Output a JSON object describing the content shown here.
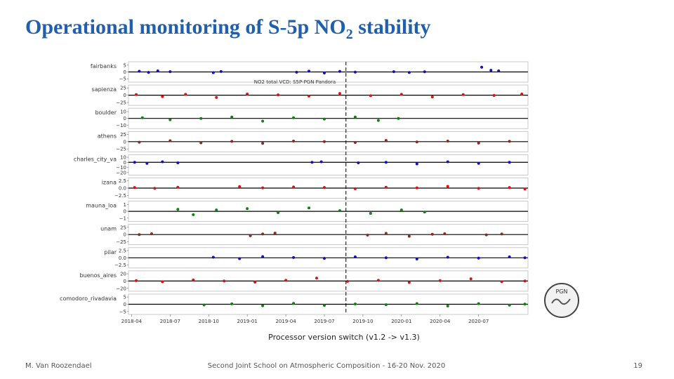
{
  "slide": {
    "title": {
      "main": "Operational monitoring of S-5p NO",
      "sub": "2",
      "rest": " stability"
    },
    "logo": "PGN",
    "footer": {
      "author": "M. Van Roozendael",
      "event": "Second Joint School on Atmospheric Composition - 16-20 Nov. 2020",
      "page": "19"
    }
  },
  "chart_data": {
    "type": "scatter",
    "title": "NO2 total VCD: S5P-PGN Pandora",
    "caption": "Processor version switch (v1.2 -> v1.3)",
    "switch_x": 2019.64,
    "xlim": [
      2018.23,
      2020.82
    ],
    "xticks": [
      {
        "value": 2018.25,
        "label": "2018-04"
      },
      {
        "value": 2018.5,
        "label": "2018-07"
      },
      {
        "value": 2018.75,
        "label": "2018-10"
      },
      {
        "value": 2019.0,
        "label": "2019-01"
      },
      {
        "value": 2019.25,
        "label": "2019-04"
      },
      {
        "value": 2019.5,
        "label": "2019-07"
      },
      {
        "value": 2019.75,
        "label": "2019-10"
      },
      {
        "value": 2020.0,
        "label": "2020-01"
      },
      {
        "value": 2020.25,
        "label": "2020-04"
      },
      {
        "value": 2020.5,
        "label": "2020-07"
      }
    ],
    "panels": [
      {
        "name": "fairbanks",
        "color": "#1010c8",
        "ylim": [
          -7.5,
          7.5
        ],
        "yticks": [
          5,
          0,
          {
            "value": -5,
            "label": "−5"
          }
        ],
        "x": [
          2018.3,
          2018.36,
          2018.42,
          2018.5,
          2018.78,
          2018.83,
          2019.32,
          2019.4,
          2019.5,
          2019.6,
          2019.7,
          2019.95,
          2020.05,
          2020.15,
          2020.52,
          2020.58,
          2020.63
        ],
        "values": [
          0.5,
          -0.3,
          0.8,
          0.2,
          -0.5,
          0.3,
          -0.2,
          0.6,
          -0.8,
          0.4,
          -0.1,
          0.2,
          -0.4,
          0.1,
          3.5,
          1.2,
          0.8
        ]
      },
      {
        "name": "sapienza",
        "color": "#e01010",
        "ylim": [
          -35,
          35
        ],
        "yticks": [
          25,
          0,
          {
            "value": -25,
            "label": "−25"
          }
        ],
        "x": [
          2018.28,
          2018.45,
          2018.6,
          2018.8,
          2019.0,
          2019.2,
          2019.4,
          2019.6,
          2019.8,
          2020.0,
          2020.2,
          2020.4,
          2020.6,
          2020.78
        ],
        "values": [
          2,
          -5,
          3,
          -8,
          4,
          1,
          -3,
          6,
          -2,
          3,
          -6,
          2,
          -1,
          4
        ]
      },
      {
        "name": "boulder",
        "color": "#108010",
        "ylim": [
          -15,
          15
        ],
        "yticks": [
          10,
          0,
          {
            "value": -10,
            "label": "−10"
          }
        ],
        "x": [
          2018.32,
          2018.5,
          2018.7,
          2018.9,
          2019.1,
          2019.3,
          2019.5,
          2019.7,
          2019.85,
          2019.98
        ],
        "values": [
          1,
          -2,
          0,
          2,
          -4,
          1,
          -1,
          2,
          -3,
          0
        ]
      },
      {
        "name": "athens",
        "color": "#8b2a1a",
        "ylim": [
          -35,
          35
        ],
        "yticks": [
          25,
          0,
          {
            "value": -25,
            "label": "−25"
          }
        ],
        "x": [
          2018.3,
          2018.5,
          2018.7,
          2018.9,
          2019.1,
          2019.3,
          2019.5,
          2019.7,
          2019.9,
          2020.1,
          2020.3,
          2020.5,
          2020.7
        ],
        "values": [
          -2,
          3,
          -4,
          1,
          -6,
          2,
          0,
          -3,
          4,
          -1,
          2,
          -5,
          1
        ]
      },
      {
        "name": "charles_city_va",
        "color": "#1010c8",
        "ylim": [
          -25,
          15
        ],
        "yticks": [
          10,
          0,
          {
            "value": -10,
            "label": "−10"
          },
          {
            "value": -20,
            "label": "−20"
          }
        ],
        "x": [
          2018.27,
          2018.35,
          2018.45,
          2018.55,
          2019.42,
          2019.48,
          2019.72,
          2019.9,
          2020.1,
          2020.3,
          2020.5,
          2020.7
        ],
        "values": [
          0,
          -2,
          1,
          -1,
          0,
          1,
          -1,
          0,
          -3,
          1,
          -2,
          0
        ]
      },
      {
        "name": "izana",
        "color": "#e01010",
        "ylim": [
          -3.5,
          3.5
        ],
        "yticks": [
          2.5,
          {
            "value": 0,
            "label": "0.0"
          },
          {
            "value": -2.5,
            "label": "−2.5"
          }
        ],
        "x": [
          2018.27,
          2018.4,
          2018.55,
          2018.95,
          2019.1,
          2019.3,
          2019.5,
          2019.7,
          2019.9,
          2020.1,
          2020.3,
          2020.5,
          2020.7,
          2020.8
        ],
        "values": [
          0.2,
          -0.1,
          0.3,
          0.5,
          0.1,
          0.4,
          0.2,
          -0.2,
          0.3,
          0.1,
          0.6,
          -0.1,
          0.2,
          -0.3
        ]
      },
      {
        "name": "mauna_loa",
        "color": "#108010",
        "ylim": [
          -1.5,
          1.5
        ],
        "yticks": [
          1,
          0,
          {
            "value": -1,
            "label": "−1"
          }
        ],
        "x": [
          2018.55,
          2018.65,
          2018.8,
          2019.0,
          2019.2,
          2019.4,
          2019.6,
          2019.8,
          2020.0,
          2020.15
        ],
        "values": [
          0.3,
          -0.5,
          0.2,
          0.4,
          -0.2,
          0.5,
          0.1,
          -0.3,
          0.2,
          -0.1
        ]
      },
      {
        "name": "unam",
        "color": "#8b2a1a",
        "ylim": [
          -35,
          35
        ],
        "yticks": [
          25,
          0,
          {
            "value": -25,
            "label": "−25"
          }
        ],
        "x": [
          2018.3,
          2018.38,
          2019.02,
          2019.1,
          2019.18,
          2019.78,
          2019.9,
          2020.05,
          2020.2,
          2020.28,
          2020.55,
          2020.65
        ],
        "values": [
          0,
          3,
          -4,
          2,
          5,
          -2,
          4,
          -6,
          1,
          3,
          -1,
          2
        ]
      },
      {
        "name": "pilar",
        "color": "#1010c8",
        "ylim": [
          -3.5,
          3.5
        ],
        "yticks": [
          2.5,
          {
            "value": 0,
            "label": "0.0"
          },
          {
            "value": -2.5,
            "label": "−2.5"
          }
        ],
        "x": [
          2018.78,
          2018.95,
          2019.1,
          2019.3,
          2019.5,
          2019.7,
          2019.9,
          2020.1,
          2020.3,
          2020.5,
          2020.7,
          2020.8
        ],
        "values": [
          0.2,
          -0.3,
          0.4,
          0.1,
          -0.2,
          0.3,
          0,
          -0.4,
          0.2,
          -0.1,
          0.3,
          0
        ]
      },
      {
        "name": "buenos_aires",
        "color": "#e01010",
        "ylim": [
          -28,
          28
        ],
        "yticks": [
          20,
          0,
          {
            "value": -20,
            "label": "−20"
          }
        ],
        "x": [
          2018.28,
          2018.45,
          2018.65,
          2018.85,
          2019.05,
          2019.25,
          2019.45,
          2019.65,
          2019.85,
          2020.05,
          2020.25,
          2020.45,
          2020.65,
          2020.8
        ],
        "values": [
          1,
          -2,
          3,
          0,
          -3,
          2,
          8,
          -1,
          2,
          -4,
          1,
          6,
          -2,
          0
        ]
      },
      {
        "name": "comodoro_rivadavia",
        "color": "#108010",
        "ylim": [
          -7,
          7
        ],
        "yticks": [
          5,
          0,
          {
            "value": -5,
            "label": "−5"
          }
        ],
        "x": [
          2018.72,
          2018.9,
          2019.1,
          2019.3,
          2019.5,
          2019.7,
          2019.9,
          2020.1,
          2020.3,
          2020.5,
          2020.7,
          2020.8
        ],
        "values": [
          -0.5,
          0.3,
          -1,
          0.6,
          -0.8,
          0.2,
          -0.3,
          0.5,
          -1.2,
          0.4,
          -0.6,
          0.1
        ]
      }
    ]
  }
}
